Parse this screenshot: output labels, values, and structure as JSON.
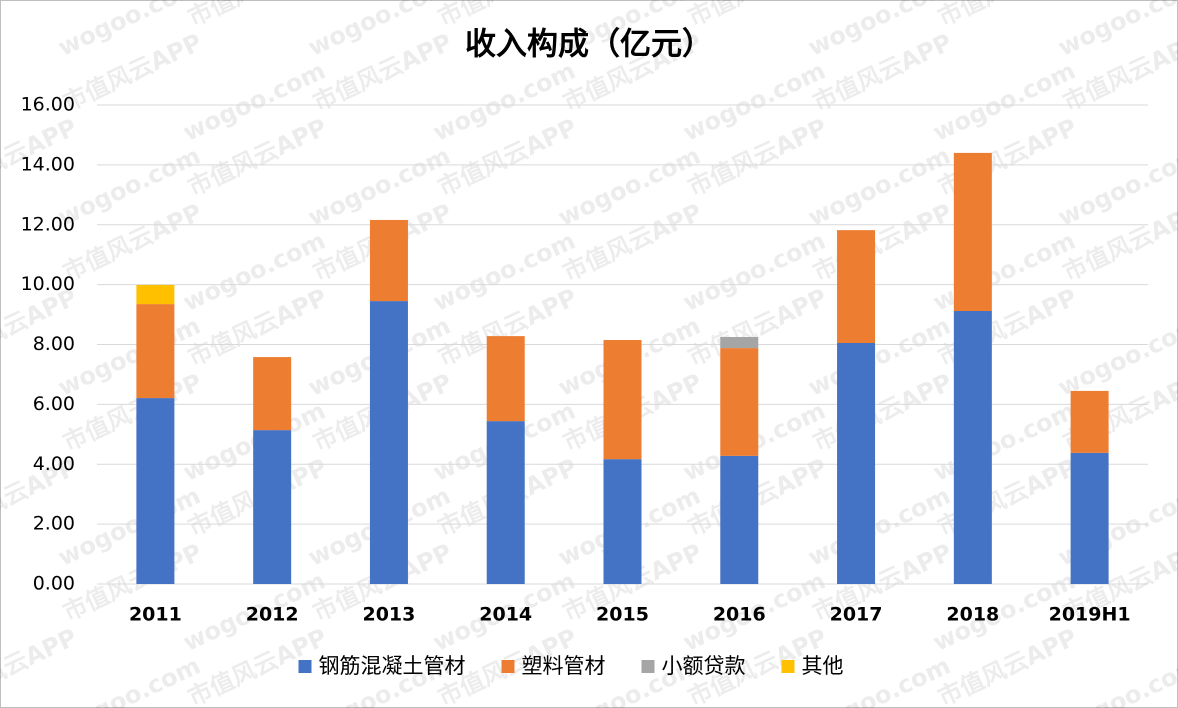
{
  "chart_data": {
    "type": "stacked_bar",
    "title": "收入构成（亿元）",
    "watermark": [
      "市值风云APP",
      "wogoo.com"
    ],
    "categories": [
      "2011",
      "2012",
      "2013",
      "2014",
      "2015",
      "2016",
      "2017",
      "2018",
      "2019H1"
    ],
    "series": [
      {
        "name": "钢筋混凝土管材",
        "color": "#4472c4",
        "values": [
          6.21,
          5.14,
          9.45,
          5.44,
          4.17,
          4.28,
          8.05,
          9.12,
          4.38
        ]
      },
      {
        "name": "塑料管材",
        "color": "#ed7d31",
        "values": [
          3.14,
          2.44,
          2.71,
          2.84,
          3.98,
          3.6,
          3.77,
          5.28,
          2.07
        ]
      },
      {
        "name": "小额贷款",
        "color": "#a5a5a5",
        "values": [
          0,
          0,
          0,
          0,
          0,
          0.37,
          0,
          0,
          0
        ]
      },
      {
        "name": "其他",
        "color": "#ffc000",
        "values": [
          0.64,
          0,
          0,
          0,
          0,
          0,
          0,
          0,
          0
        ]
      }
    ],
    "ylim": [
      0,
      16
    ],
    "yticks": [
      {
        "value": 0,
        "label": "0.00"
      },
      {
        "value": 2,
        "label": "2.00"
      },
      {
        "value": 4,
        "label": "4.00"
      },
      {
        "value": 6,
        "label": "6.00"
      },
      {
        "value": 8,
        "label": "8.00"
      },
      {
        "value": 10,
        "label": "10.00"
      },
      {
        "value": 12,
        "label": "12.00"
      },
      {
        "value": 14,
        "label": "14.00"
      },
      {
        "value": 16,
        "label": "16.00"
      }
    ],
    "grid": true,
    "legend": "bottom"
  }
}
